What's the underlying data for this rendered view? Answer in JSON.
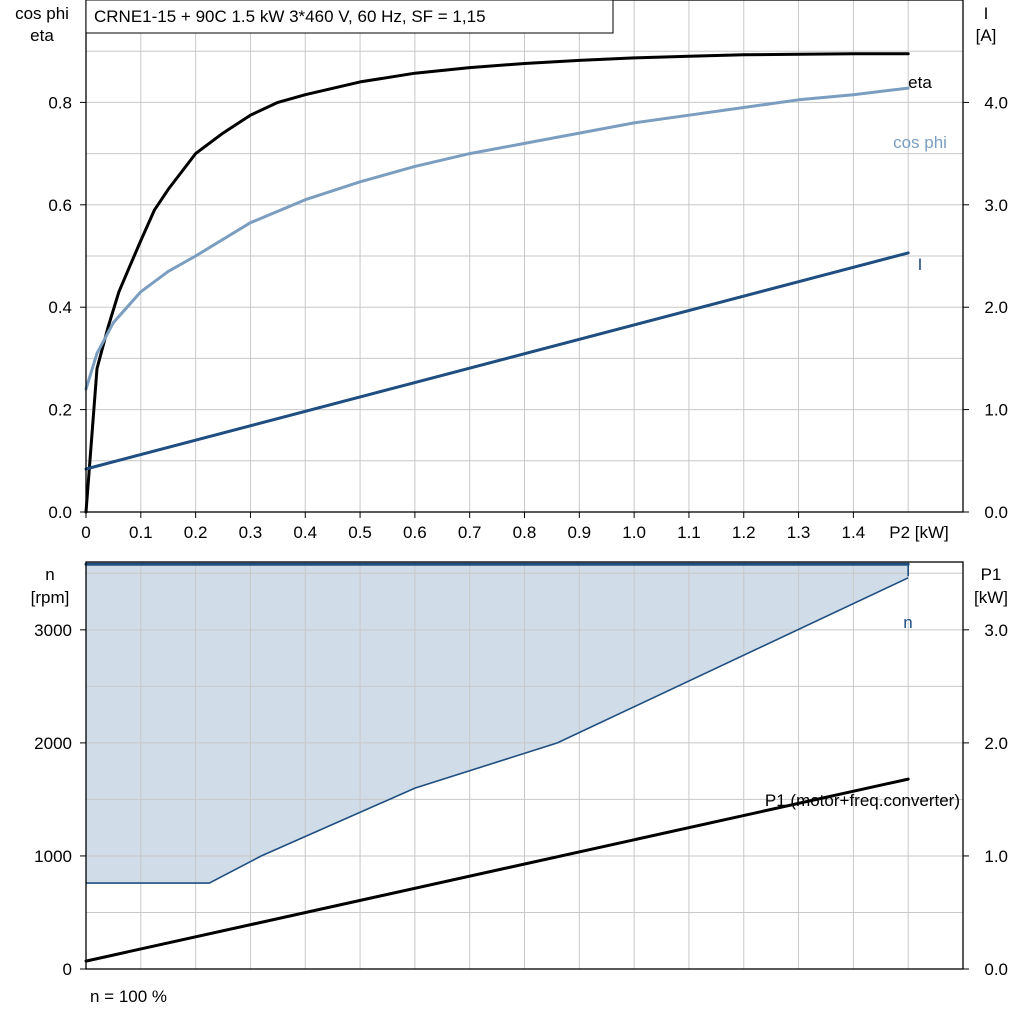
{
  "chart_data": [
    {
      "type": "line",
      "title": "CRNE1-15 + 90C   1.5 kW   3*460 V, 60 Hz, SF = 1,15",
      "y_left_label": [
        "cos phi",
        "eta"
      ],
      "y_right_label": [
        "I",
        "[A]"
      ],
      "x_label_unit": "P2 [kW]",
      "x_ticks": [
        "0",
        "0.1",
        "0.2",
        "0.3",
        "0.4",
        "0.5",
        "0.6",
        "0.7",
        "0.8",
        "0.9",
        "1.0",
        "1.1",
        "1.2",
        "1.3",
        "1.4"
      ],
      "y_left_ticks": [
        "0.0",
        "0.2",
        "0.4",
        "0.6",
        "0.8"
      ],
      "y_right_ticks": [
        "0.0",
        "1.0",
        "2.0",
        "3.0",
        "4.0"
      ],
      "xlim": [
        0,
        1.6
      ],
      "ylim_left": [
        0,
        1.0
      ],
      "ylim_right": [
        0,
        5.0
      ],
      "grid": true,
      "series": [
        {
          "name": "eta",
          "axis": "left",
          "color": "#000000",
          "x": [
            0,
            0.02,
            0.04,
            0.06,
            0.08,
            0.1,
            0.125,
            0.15,
            0.2,
            0.25,
            0.3,
            0.35,
            0.4,
            0.5,
            0.6,
            0.7,
            0.8,
            0.9,
            1.0,
            1.1,
            1.2,
            1.3,
            1.4,
            1.5
          ],
          "y": [
            0.0,
            0.28,
            0.36,
            0.43,
            0.48,
            0.53,
            0.59,
            0.63,
            0.7,
            0.74,
            0.775,
            0.8,
            0.815,
            0.84,
            0.857,
            0.868,
            0.876,
            0.882,
            0.887,
            0.89,
            0.893,
            0.894,
            0.895,
            0.895
          ]
        },
        {
          "name": "cos phi",
          "axis": "left",
          "color": "#7b9ec0",
          "x": [
            0,
            0.02,
            0.05,
            0.1,
            0.15,
            0.2,
            0.3,
            0.4,
            0.5,
            0.6,
            0.7,
            0.8,
            0.9,
            1.0,
            1.1,
            1.2,
            1.3,
            1.4,
            1.5
          ],
          "y": [
            0.24,
            0.31,
            0.37,
            0.43,
            0.47,
            0.5,
            0.565,
            0.61,
            0.645,
            0.675,
            0.7,
            0.72,
            0.74,
            0.76,
            0.775,
            0.79,
            0.805,
            0.815,
            0.828
          ]
        },
        {
          "name": "I",
          "axis": "right",
          "color": "#1f4e80",
          "x": [
            0,
            1.5
          ],
          "y": [
            0.42,
            2.53
          ]
        }
      ]
    },
    {
      "type": "area",
      "y_left_label": [
        "n",
        "[rpm]"
      ],
      "y_right_label": [
        "P1",
        "[kW]"
      ],
      "y_left_ticks": [
        "0",
        "1000",
        "2000",
        "3000"
      ],
      "y_right_ticks": [
        "0.0",
        "1.0",
        "2.0",
        "3.0"
      ],
      "xlim": [
        0,
        1.6
      ],
      "ylim_left": [
        0,
        3600
      ],
      "ylim_right": [
        0,
        3.6
      ],
      "grid": true,
      "footer": "n = 100 %",
      "shaded_region": {
        "color": "#d0dce8",
        "top_rpm": 3580,
        "lower_boundary_x": [
          0,
          0.225,
          0.32,
          0.6,
          0.86,
          1.5
        ],
        "lower_boundary_rpm": [
          760,
          760,
          1000,
          1600,
          2000,
          3460
        ]
      },
      "series": [
        {
          "name": "n",
          "axis": "left",
          "color": "#1f4e80",
          "x": [
            0,
            1.5
          ],
          "y": [
            3580,
            3580
          ]
        },
        {
          "name": "P1 (motor+freq.converter)",
          "axis": "right",
          "color": "#000000",
          "x": [
            0,
            1.5
          ],
          "y": [
            0.07,
            1.68
          ]
        }
      ]
    }
  ]
}
